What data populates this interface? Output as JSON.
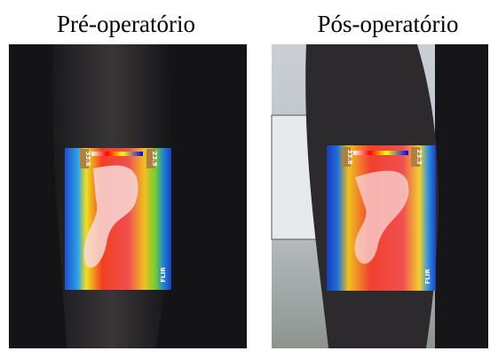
{
  "panels": [
    {
      "title": "Pré-operatório",
      "scale_high": "33.6",
      "scale_low": "23.9",
      "brand": "FLIR"
    },
    {
      "title": "Pós-operatório",
      "scale_high": "33.8",
      "scale_low": "23.3",
      "brand": "FLIR"
    }
  ]
}
